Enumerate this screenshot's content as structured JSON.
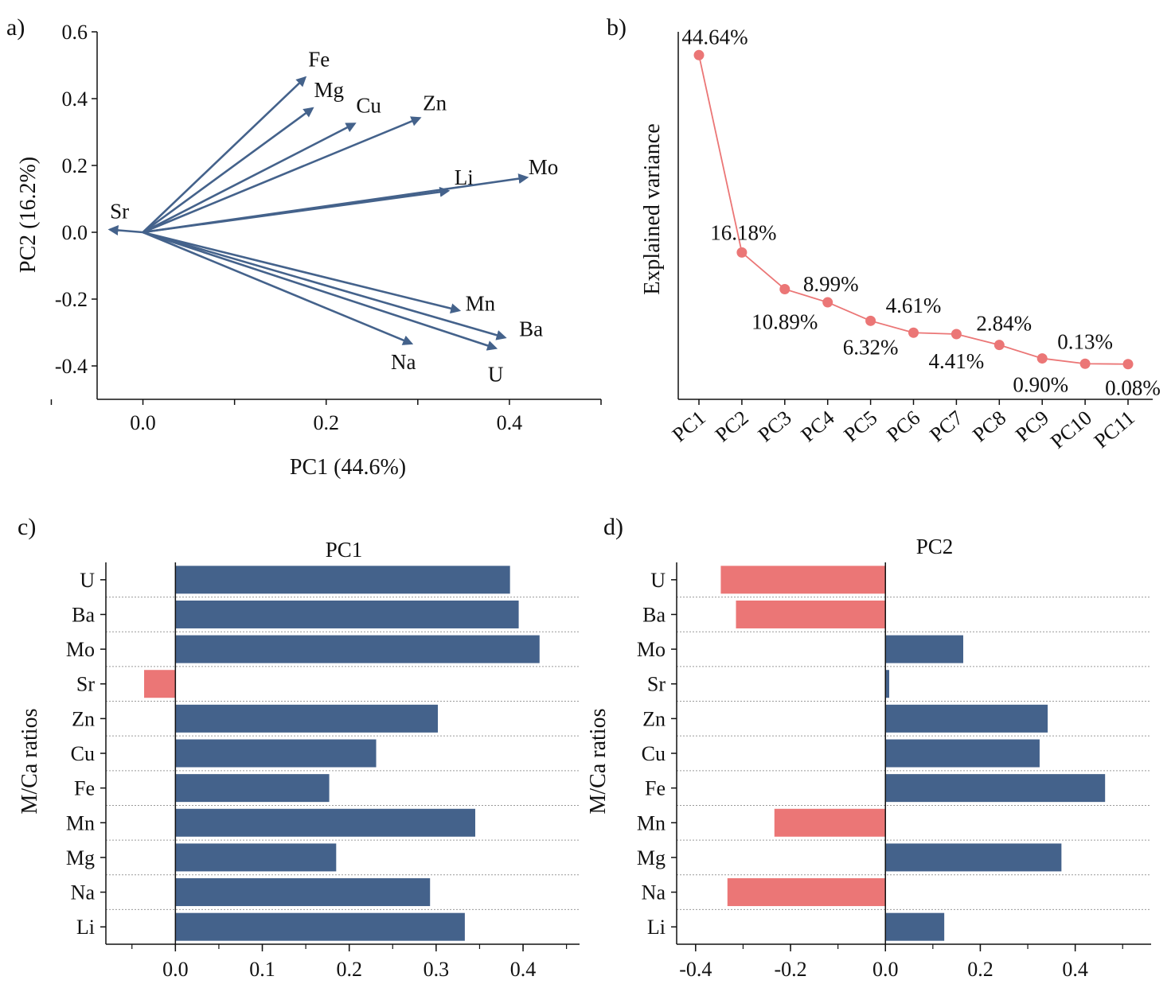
{
  "colors": {
    "blue": "#44628b",
    "red": "#eb7676",
    "axis": "#111111",
    "grid": "#9a9a9a"
  },
  "chart_data": [
    {
      "id": "a",
      "type": "scatter",
      "panel_label": "a)",
      "title": "",
      "xlabel": "PC1 (44.6%)",
      "ylabel": "PC2 (16.2%)",
      "xlim": [
        -0.05,
        0.5
      ],
      "ylim": [
        -0.5,
        0.6
      ],
      "xticks": [
        "0.0",
        "0.2",
        "0.4"
      ],
      "yticks": [
        "0.6",
        "0.4",
        "0.2",
        "0.0",
        "-0.2",
        "-0.4"
      ],
      "vectors": [
        {
          "name": "Fe",
          "x": 0.177,
          "y": 0.463
        },
        {
          "name": "Mg",
          "x": 0.185,
          "y": 0.371
        },
        {
          "name": "Cu",
          "x": 0.231,
          "y": 0.325
        },
        {
          "name": "Zn",
          "x": 0.302,
          "y": 0.342
        },
        {
          "name": "Li",
          "x": 0.333,
          "y": 0.124
        },
        {
          "name": "Mo",
          "x": 0.419,
          "y": 0.164
        },
        {
          "name": "Sr",
          "x": -0.036,
          "y": 0.008
        },
        {
          "name": "Mn",
          "x": 0.345,
          "y": -0.234
        },
        {
          "name": "Ba",
          "x": 0.395,
          "y": -0.315
        },
        {
          "name": "U",
          "x": 0.385,
          "y": -0.347
        },
        {
          "name": "Na",
          "x": 0.293,
          "y": -0.333
        }
      ]
    },
    {
      "id": "b",
      "type": "line",
      "panel_label": "b)",
      "title": "",
      "xlabel": "",
      "ylabel": "Explained variance",
      "categories": [
        "PC1",
        "PC2",
        "PC3",
        "PC4",
        "PC5",
        "PC6",
        "PC7",
        "PC8",
        "PC9",
        "PC10",
        "PC11"
      ],
      "values": [
        44.64,
        16.18,
        10.89,
        8.99,
        6.32,
        4.61,
        4.41,
        2.84,
        0.9,
        0.13,
        0.08
      ],
      "data_labels": [
        "44.64%",
        "16.18%",
        "10.89%",
        "8.99%",
        "6.32%",
        "4.61%",
        "4.41%",
        "2.84%",
        "0.90%",
        "0.13%",
        "0.08%"
      ],
      "ylim": [
        -5,
        48
      ]
    },
    {
      "id": "c",
      "type": "bar",
      "panel_label": "c)",
      "title": "PC1",
      "xlabel": "",
      "ylabel": "M/Ca ratios",
      "categories": [
        "U",
        "Ba",
        "Mo",
        "Sr",
        "Zn",
        "Cu",
        "Fe",
        "Mn",
        "Mg",
        "Na",
        "Li"
      ],
      "values": [
        0.385,
        0.395,
        0.419,
        -0.036,
        0.302,
        0.231,
        0.177,
        0.345,
        0.185,
        0.293,
        0.333
      ],
      "xlim": [
        -0.08,
        0.465
      ],
      "xticks": [
        "0.0",
        "0.1",
        "0.2",
        "0.3",
        "0.4"
      ]
    },
    {
      "id": "d",
      "type": "bar",
      "panel_label": "d)",
      "title": "PC2",
      "xlabel": "",
      "ylabel": "M/Ca ratios",
      "categories": [
        "U",
        "Ba",
        "Mo",
        "Sr",
        "Zn",
        "Cu",
        "Fe",
        "Mn",
        "Mg",
        "Na",
        "Li"
      ],
      "values": [
        -0.347,
        -0.315,
        0.164,
        0.008,
        0.342,
        0.325,
        0.463,
        -0.234,
        0.371,
        -0.333,
        0.124
      ],
      "xlim": [
        -0.44,
        0.56
      ],
      "xticks": [
        "-0.4",
        "-0.2",
        "0.0",
        "0.2",
        "0.4"
      ]
    }
  ]
}
